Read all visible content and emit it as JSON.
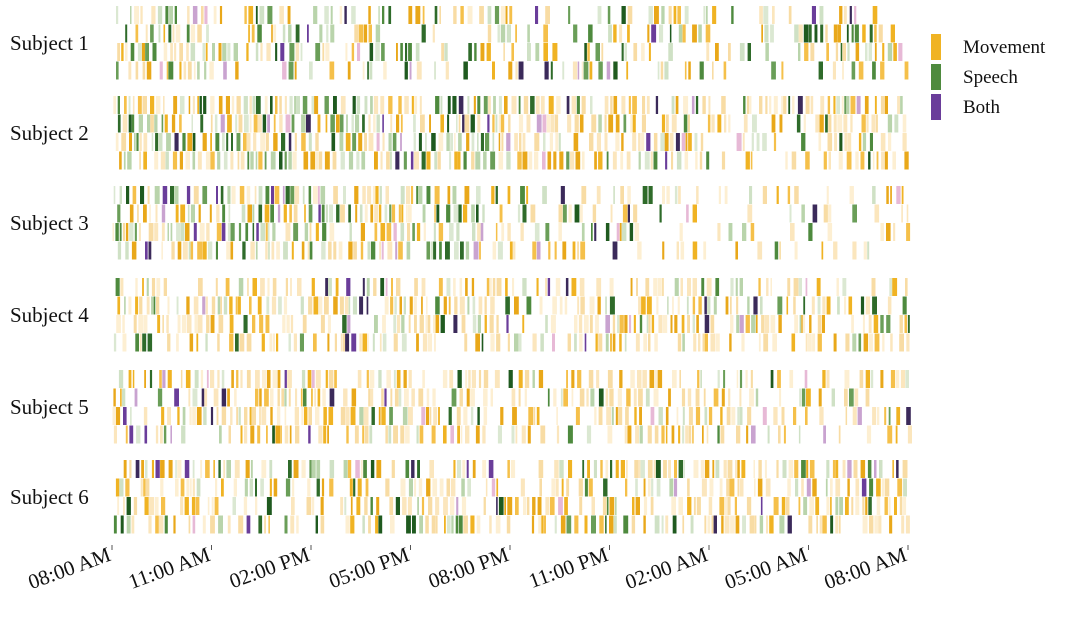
{
  "chart_data": {
    "type": "heatmap",
    "title": "",
    "xlabel": "",
    "ylabel": "",
    "subjects": [
      "Subject 1",
      "Subject 2",
      "Subject 3",
      "Subject 4",
      "Subject 5",
      "Subject 6"
    ],
    "tracks_per_subject": 4,
    "x_ticks": [
      "08:00 AM",
      "11:00 AM",
      "02:00 PM",
      "05:00 PM",
      "08:00 PM",
      "11:00 PM",
      "02:00 AM",
      "05:00 AM",
      "08:00 AM"
    ],
    "x_range_hours": [
      0,
      24
    ],
    "legend": {
      "position": "right",
      "items": [
        {
          "label": "Movement",
          "color": "#f0b323"
        },
        {
          "label": "Speech",
          "color": "#4e8a3e"
        },
        {
          "label": "Both",
          "color": "#6a3d9a"
        }
      ]
    },
    "activity_density": [
      [
        0.75,
        0.55,
        0.6,
        0.45,
        0.55,
        0.5,
        0.35,
        0.45
      ],
      [
        0.9,
        0.95,
        0.9,
        0.85,
        0.85,
        0.7,
        0.6,
        0.75
      ],
      [
        0.8,
        0.85,
        0.85,
        0.6,
        0.45,
        0.35,
        0.3,
        0.35
      ],
      [
        0.6,
        0.7,
        0.7,
        0.75,
        0.7,
        0.75,
        0.7,
        0.65
      ],
      [
        0.7,
        0.75,
        0.75,
        0.7,
        0.65,
        0.7,
        0.6,
        0.5
      ],
      [
        0.75,
        0.55,
        0.7,
        0.75,
        0.7,
        0.75,
        0.8,
        0.75
      ]
    ]
  }
}
